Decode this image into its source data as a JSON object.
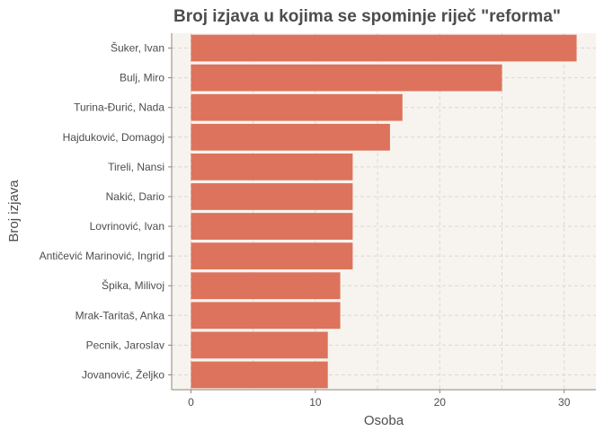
{
  "chart_data": {
    "type": "bar",
    "orientation": "horizontal",
    "title": "Broj izjava u kojima se spominje riječ \"reforma\"",
    "xlabel": "Osoba",
    "ylabel": "Broj izjava",
    "categories": [
      "Šuker, Ivan",
      "Bulj, Miro",
      "Turina-Đurić, Nada",
      "Hajduković, Domagoj",
      "Tireli, Nansi",
      "Nakić, Dario",
      "Lovrinović, Ivan",
      "Antičević Marinović, Ingrid",
      "Špika, Milivoj",
      "Mrak-Taritaš, Anka",
      "Pecnik, Jaroslav",
      "Jovanović, Željko"
    ],
    "values": [
      31,
      25,
      17,
      16,
      13,
      13,
      13,
      13,
      12,
      12,
      11,
      11
    ],
    "xlim": [
      -1.55,
      32.55
    ],
    "xticks": [
      0,
      10,
      20,
      30
    ],
    "grid": true,
    "legend": "none",
    "colors": {
      "bar": "#dd735c",
      "panel": "#f7f4ef",
      "text": "#4d4d4d"
    }
  }
}
